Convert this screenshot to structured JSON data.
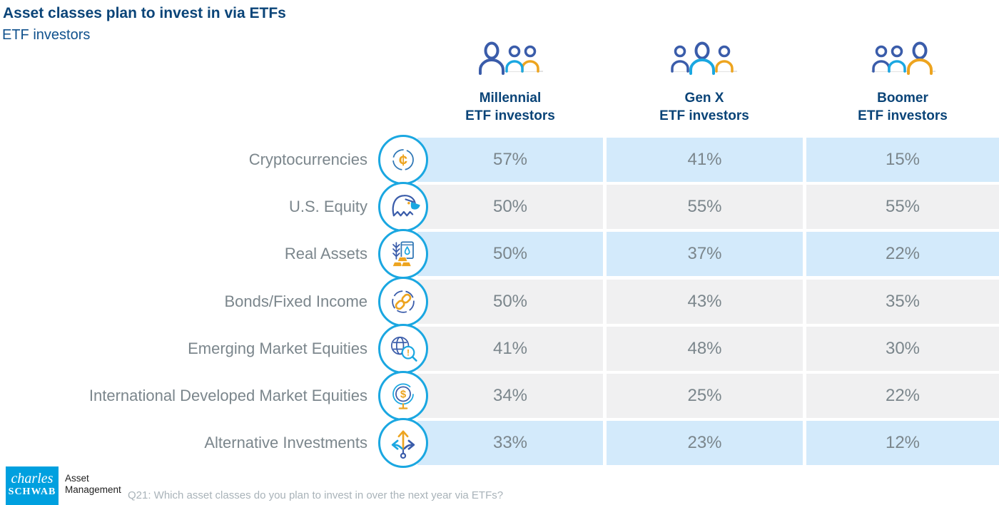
{
  "header": {
    "title": "Asset classes plan to invest in via ETFs",
    "subtitle": "ETF investors"
  },
  "columns": [
    {
      "line1": "Millennial",
      "line2": "ETF investors",
      "icon": "millennial-people-icon"
    },
    {
      "line1": "Gen X",
      "line2": "ETF investors",
      "icon": "genx-people-icon"
    },
    {
      "line1": "Boomer",
      "line2": "ETF investors",
      "icon": "boomer-people-icon"
    }
  ],
  "rows": [
    {
      "label": "Cryptocurrencies",
      "icon": "cryptocurrency-icon",
      "values": [
        "57%",
        "41%",
        "15%"
      ],
      "highlight": true
    },
    {
      "label": "U.S. Equity",
      "icon": "eagle-icon",
      "values": [
        "50%",
        "55%",
        "55%"
      ],
      "highlight": false
    },
    {
      "label": "Real Assets",
      "icon": "real-assets-icon",
      "values": [
        "50%",
        "37%",
        "22%"
      ],
      "highlight": true
    },
    {
      "label": "Bonds/Fixed Income",
      "icon": "chain-link-icon",
      "values": [
        "50%",
        "43%",
        "35%"
      ],
      "highlight": false
    },
    {
      "label": "Emerging Market Equities",
      "icon": "globe-magnifier-icon",
      "values": [
        "41%",
        "48%",
        "30%"
      ],
      "highlight": false
    },
    {
      "label": "International Developed Market Equities",
      "icon": "globe-dollar-icon",
      "values": [
        "34%",
        "25%",
        "22%"
      ],
      "highlight": false
    },
    {
      "label": "Alternative Investments",
      "icon": "branching-arrows-icon",
      "values": [
        "33%",
        "23%",
        "12%"
      ],
      "highlight": true
    }
  ],
  "footer": {
    "logo_line1": "charles",
    "logo_line2": "SCHWAB",
    "brand_line1": "Asset",
    "brand_line2": "Management",
    "source_note": "Q21: Which asset classes do you plan to invest in over the next year via ETFs?"
  },
  "colors": {
    "navy": "#0a4478",
    "cyan": "#1aa7e1",
    "orange": "#eda41f",
    "dark_blue_icon": "#3a5caa",
    "row_blue": "#d3eafb",
    "row_gray": "#f0f0f1",
    "text_gray": "#7b868c",
    "note_gray": "#a9b3b9",
    "logo_blue": "#00a0df"
  },
  "chart_data": {
    "type": "table",
    "title": "Asset classes plan to invest in via ETFs",
    "subtitle": "ETF investors",
    "unit": "%",
    "categories": [
      "Cryptocurrencies",
      "U.S. Equity",
      "Real Assets",
      "Bonds/Fixed Income",
      "Emerging Market Equities",
      "International Developed Market Equities",
      "Alternative Investments"
    ],
    "series": [
      {
        "name": "Millennial ETF investors",
        "values": [
          57,
          50,
          50,
          50,
          41,
          34,
          33
        ]
      },
      {
        "name": "Gen X ETF investors",
        "values": [
          41,
          55,
          37,
          43,
          48,
          25,
          23
        ]
      },
      {
        "name": "Boomer ETF investors",
        "values": [
          15,
          55,
          22,
          35,
          30,
          22,
          12
        ]
      }
    ],
    "highlighted_rows": [
      "Cryptocurrencies",
      "Real Assets",
      "Alternative Investments"
    ],
    "source_note": "Q21: Which asset classes do you plan to invest in over the next year via ETFs?"
  }
}
